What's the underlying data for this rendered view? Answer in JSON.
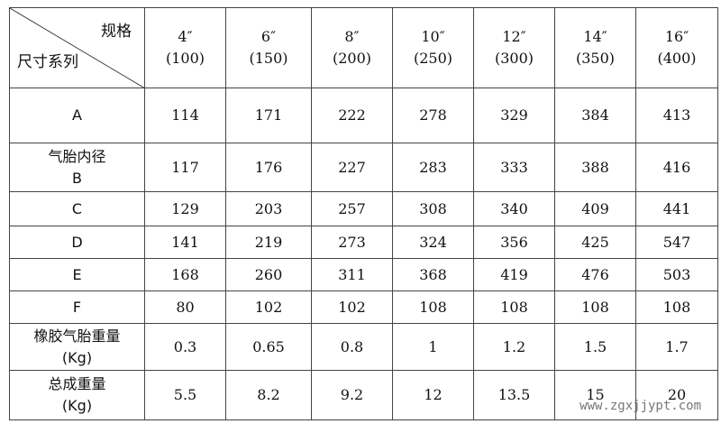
{
  "header": {
    "corner_top": "规格",
    "corner_bottom": "尺寸系列",
    "columns": [
      {
        "size": "4″",
        "mm": "(100)"
      },
      {
        "size": "6″",
        "mm": "(150)"
      },
      {
        "size": "8″",
        "mm": "(200)"
      },
      {
        "size": "10″",
        "mm": "(250)"
      },
      {
        "size": "12″",
        "mm": "(300)"
      },
      {
        "size": "14″",
        "mm": "(350)"
      },
      {
        "size": "16″",
        "mm": "(400)"
      }
    ]
  },
  "rows": [
    {
      "label": [
        "A"
      ],
      "values": [
        114,
        171,
        222,
        278,
        329,
        384,
        413
      ]
    },
    {
      "label": [
        "气胎内径",
        "B"
      ],
      "values": [
        117,
        176,
        227,
        283,
        333,
        388,
        416
      ]
    },
    {
      "label": [
        "C"
      ],
      "values": [
        129,
        203,
        257,
        308,
        340,
        409,
        441
      ]
    },
    {
      "label": [
        "D"
      ],
      "values": [
        141,
        219,
        273,
        324,
        356,
        425,
        547
      ]
    },
    {
      "label": [
        "E"
      ],
      "values": [
        168,
        260,
        311,
        368,
        419,
        476,
        503
      ]
    },
    {
      "label": [
        "F"
      ],
      "values": [
        80,
        102,
        102,
        108,
        108,
        108,
        108
      ]
    },
    {
      "label": [
        "橡胶气胎重量",
        "(Kg)"
      ],
      "values": [
        0.3,
        0.65,
        0.8,
        1,
        1.2,
        1.5,
        1.7
      ]
    },
    {
      "label": [
        "总成重量",
        "(Kg)"
      ],
      "values": [
        5.5,
        8.2,
        9.2,
        12,
        13.5,
        15,
        20
      ]
    }
  ],
  "watermark": "www.zgxjjypt.com"
}
